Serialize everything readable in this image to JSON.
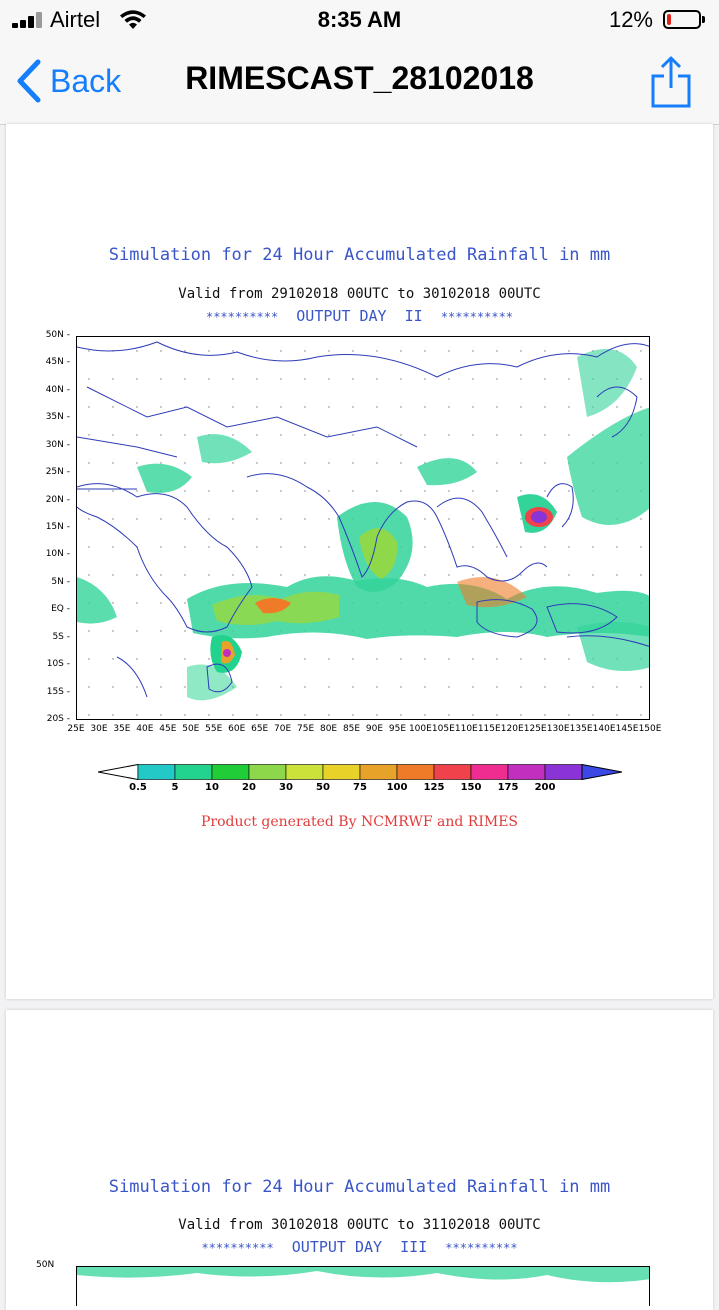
{
  "status_bar": {
    "carrier": "Airtel",
    "time": "8:35 AM",
    "battery_percent": "12%",
    "battery_level": 0.12,
    "battery_color": "#e0241b"
  },
  "nav": {
    "back_label": "Back",
    "title": "RIMESCAST_28102018",
    "back_icon": "chevron-left-icon",
    "share_icon": "share-icon",
    "accent_color": "#147efb"
  },
  "pages": [
    {
      "title": "Simulation for 24 Hour Accumulated Rainfall in mm",
      "valid": "Valid from 29102018 00UTC to 30102018 00UTC",
      "output_stars_left": "**********",
      "output_day": "OUTPUT DAY  II",
      "output_stars_right": "**********",
      "lat_labels": [
        "50N",
        "45N",
        "40N",
        "35N",
        "30N",
        "25N",
        "20N",
        "15N",
        "10N",
        "5N",
        "EQ",
        "5S",
        "10S",
        "15S",
        "20S"
      ],
      "lon_labels": [
        "25E",
        "30E",
        "35E",
        "40E",
        "45E",
        "50E",
        "55E",
        "60E",
        "65E",
        "70E",
        "75E",
        "80E",
        "85E",
        "90E",
        "95E",
        "100E",
        "105E",
        "110E",
        "115E",
        "120E",
        "125E",
        "130E",
        "135E",
        "140E",
        "145E",
        "150E"
      ],
      "legend_values": [
        "0.5",
        "5",
        "10",
        "20",
        "30",
        "50",
        "75",
        "100",
        "125",
        "150",
        "175",
        "200"
      ],
      "legend_colors": [
        "#ffffff",
        "#22c9c6",
        "#21d38c",
        "#20cc38",
        "#8cd84a",
        "#cbe23b",
        "#e8d22a",
        "#e7a22a",
        "#ef7b28",
        "#f0424a",
        "#ef2c8f",
        "#c22fbf",
        "#8a33d6",
        "#3b48e6"
      ],
      "credit": "Product generated By NCMRWF and RIMES"
    },
    {
      "title": "Simulation for 24 Hour Accumulated Rainfall in mm",
      "valid": "Valid from 30102018 00UTC to 31102018 00UTC",
      "output_stars_left": "**********",
      "output_day": "OUTPUT DAY  III",
      "output_stars_right": "**********",
      "lat_top_label": "50N"
    }
  ]
}
